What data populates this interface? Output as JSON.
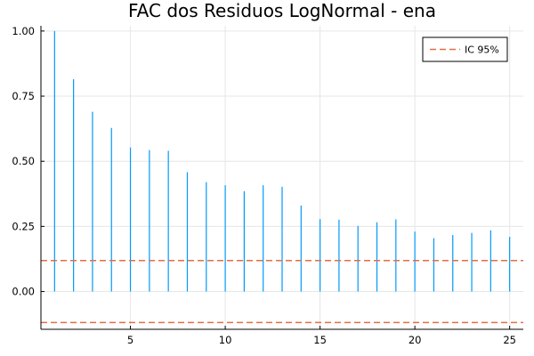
{
  "chart_data": {
    "type": "stem",
    "title": "FAC dos Residuos  LogNormal - ena",
    "xlabel": "",
    "ylabel": "",
    "x": [
      1,
      2,
      3,
      4,
      5,
      6,
      7,
      8,
      9,
      10,
      11,
      12,
      13,
      14,
      15,
      16,
      17,
      18,
      19,
      20,
      21,
      22,
      23,
      24,
      25
    ],
    "series": [
      {
        "color": "#009AFA",
        "values": [
          1.0,
          0.815,
          0.69,
          0.628,
          0.553,
          0.543,
          0.54,
          0.458,
          0.42,
          0.408,
          0.385,
          0.408,
          0.402,
          0.33,
          0.278,
          0.276,
          0.252,
          0.266,
          0.277,
          0.23,
          0.205,
          0.217,
          0.225,
          0.235,
          0.21
        ]
      }
    ],
    "confidence_band": {
      "name": "IC 95%",
      "upper": 0.119,
      "lower": -0.119,
      "color": "#E26F46",
      "style": "dashed"
    },
    "xlim": [
      0.28,
      25.72
    ],
    "ylim": [
      -0.145,
      1.02
    ],
    "xticks": [
      5,
      10,
      15,
      20,
      25
    ],
    "yticks": [
      0.0,
      0.25,
      0.5,
      0.75,
      1.0
    ],
    "xtick_labels": [
      "5",
      "10",
      "15",
      "20",
      "25"
    ],
    "ytick_labels": [
      "0.00",
      "0.25",
      "0.50",
      "0.75",
      "1.00"
    ],
    "grid": true,
    "legend_position": "top-right"
  }
}
